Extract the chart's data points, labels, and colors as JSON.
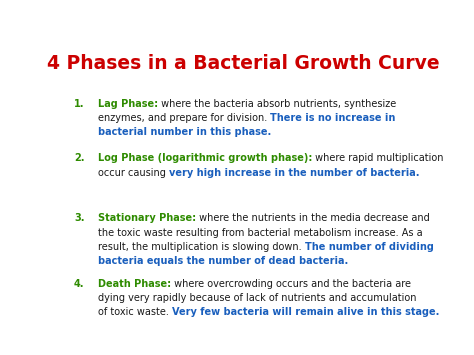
{
  "title": "4 Phases in a Bacterial Growth Curve",
  "title_color": "#CC0000",
  "background_color": "#FFFFFF",
  "figsize": [
    4.74,
    3.55
  ],
  "dpi": 100,
  "items": [
    {
      "number": "1.",
      "number_color": "#2E8B00",
      "segments": [
        {
          "text": "Lag Phase:",
          "color": "#2E8B00",
          "bold": true
        },
        {
          "text": " where the bacteria absorb nutrients, synthesize\nenzymes, and prepare for division. ",
          "color": "#1a1a1a",
          "bold": false
        },
        {
          "text": "There is no increase in\nbacterial number in this phase.",
          "color": "#1a5fbd",
          "bold": true
        }
      ]
    },
    {
      "number": "2.",
      "number_color": "#2E8B00",
      "segments": [
        {
          "text": "Log Phase (logarithmic growth phase):",
          "color": "#2E8B00",
          "bold": true
        },
        {
          "text": " where rapid multiplication\noccur causing ",
          "color": "#1a1a1a",
          "bold": false
        },
        {
          "text": "very high increase in the number of bacteria.",
          "color": "#1a5fbd",
          "bold": true
        }
      ]
    },
    {
      "number": "3.",
      "number_color": "#2E8B00",
      "segments": [
        {
          "text": "Stationary Phase:",
          "color": "#2E8B00",
          "bold": true
        },
        {
          "text": " where the nutrients in the media decrease and\nthe toxic waste resulting from bacterial metabolism increase. As a\nresult, the multiplication is slowing down. ",
          "color": "#1a1a1a",
          "bold": false
        },
        {
          "text": "The number of dividing\nbacteria equals the number of dead bacteria.",
          "color": "#1a5fbd",
          "bold": true
        }
      ]
    },
    {
      "number": "4.",
      "number_color": "#2E8B00",
      "segments": [
        {
          "text": "Death Phase:",
          "color": "#2E8B00",
          "bold": true
        },
        {
          "text": " where overcrowding occurs and the bacteria are\ndying very rapidly because of lack of nutrients and accumulation\nof toxic waste. ",
          "color": "#1a1a1a",
          "bold": false
        },
        {
          "text": "Very few bacteria will remain alive in this stage.",
          "color": "#1a5fbd",
          "bold": true
        }
      ]
    }
  ]
}
